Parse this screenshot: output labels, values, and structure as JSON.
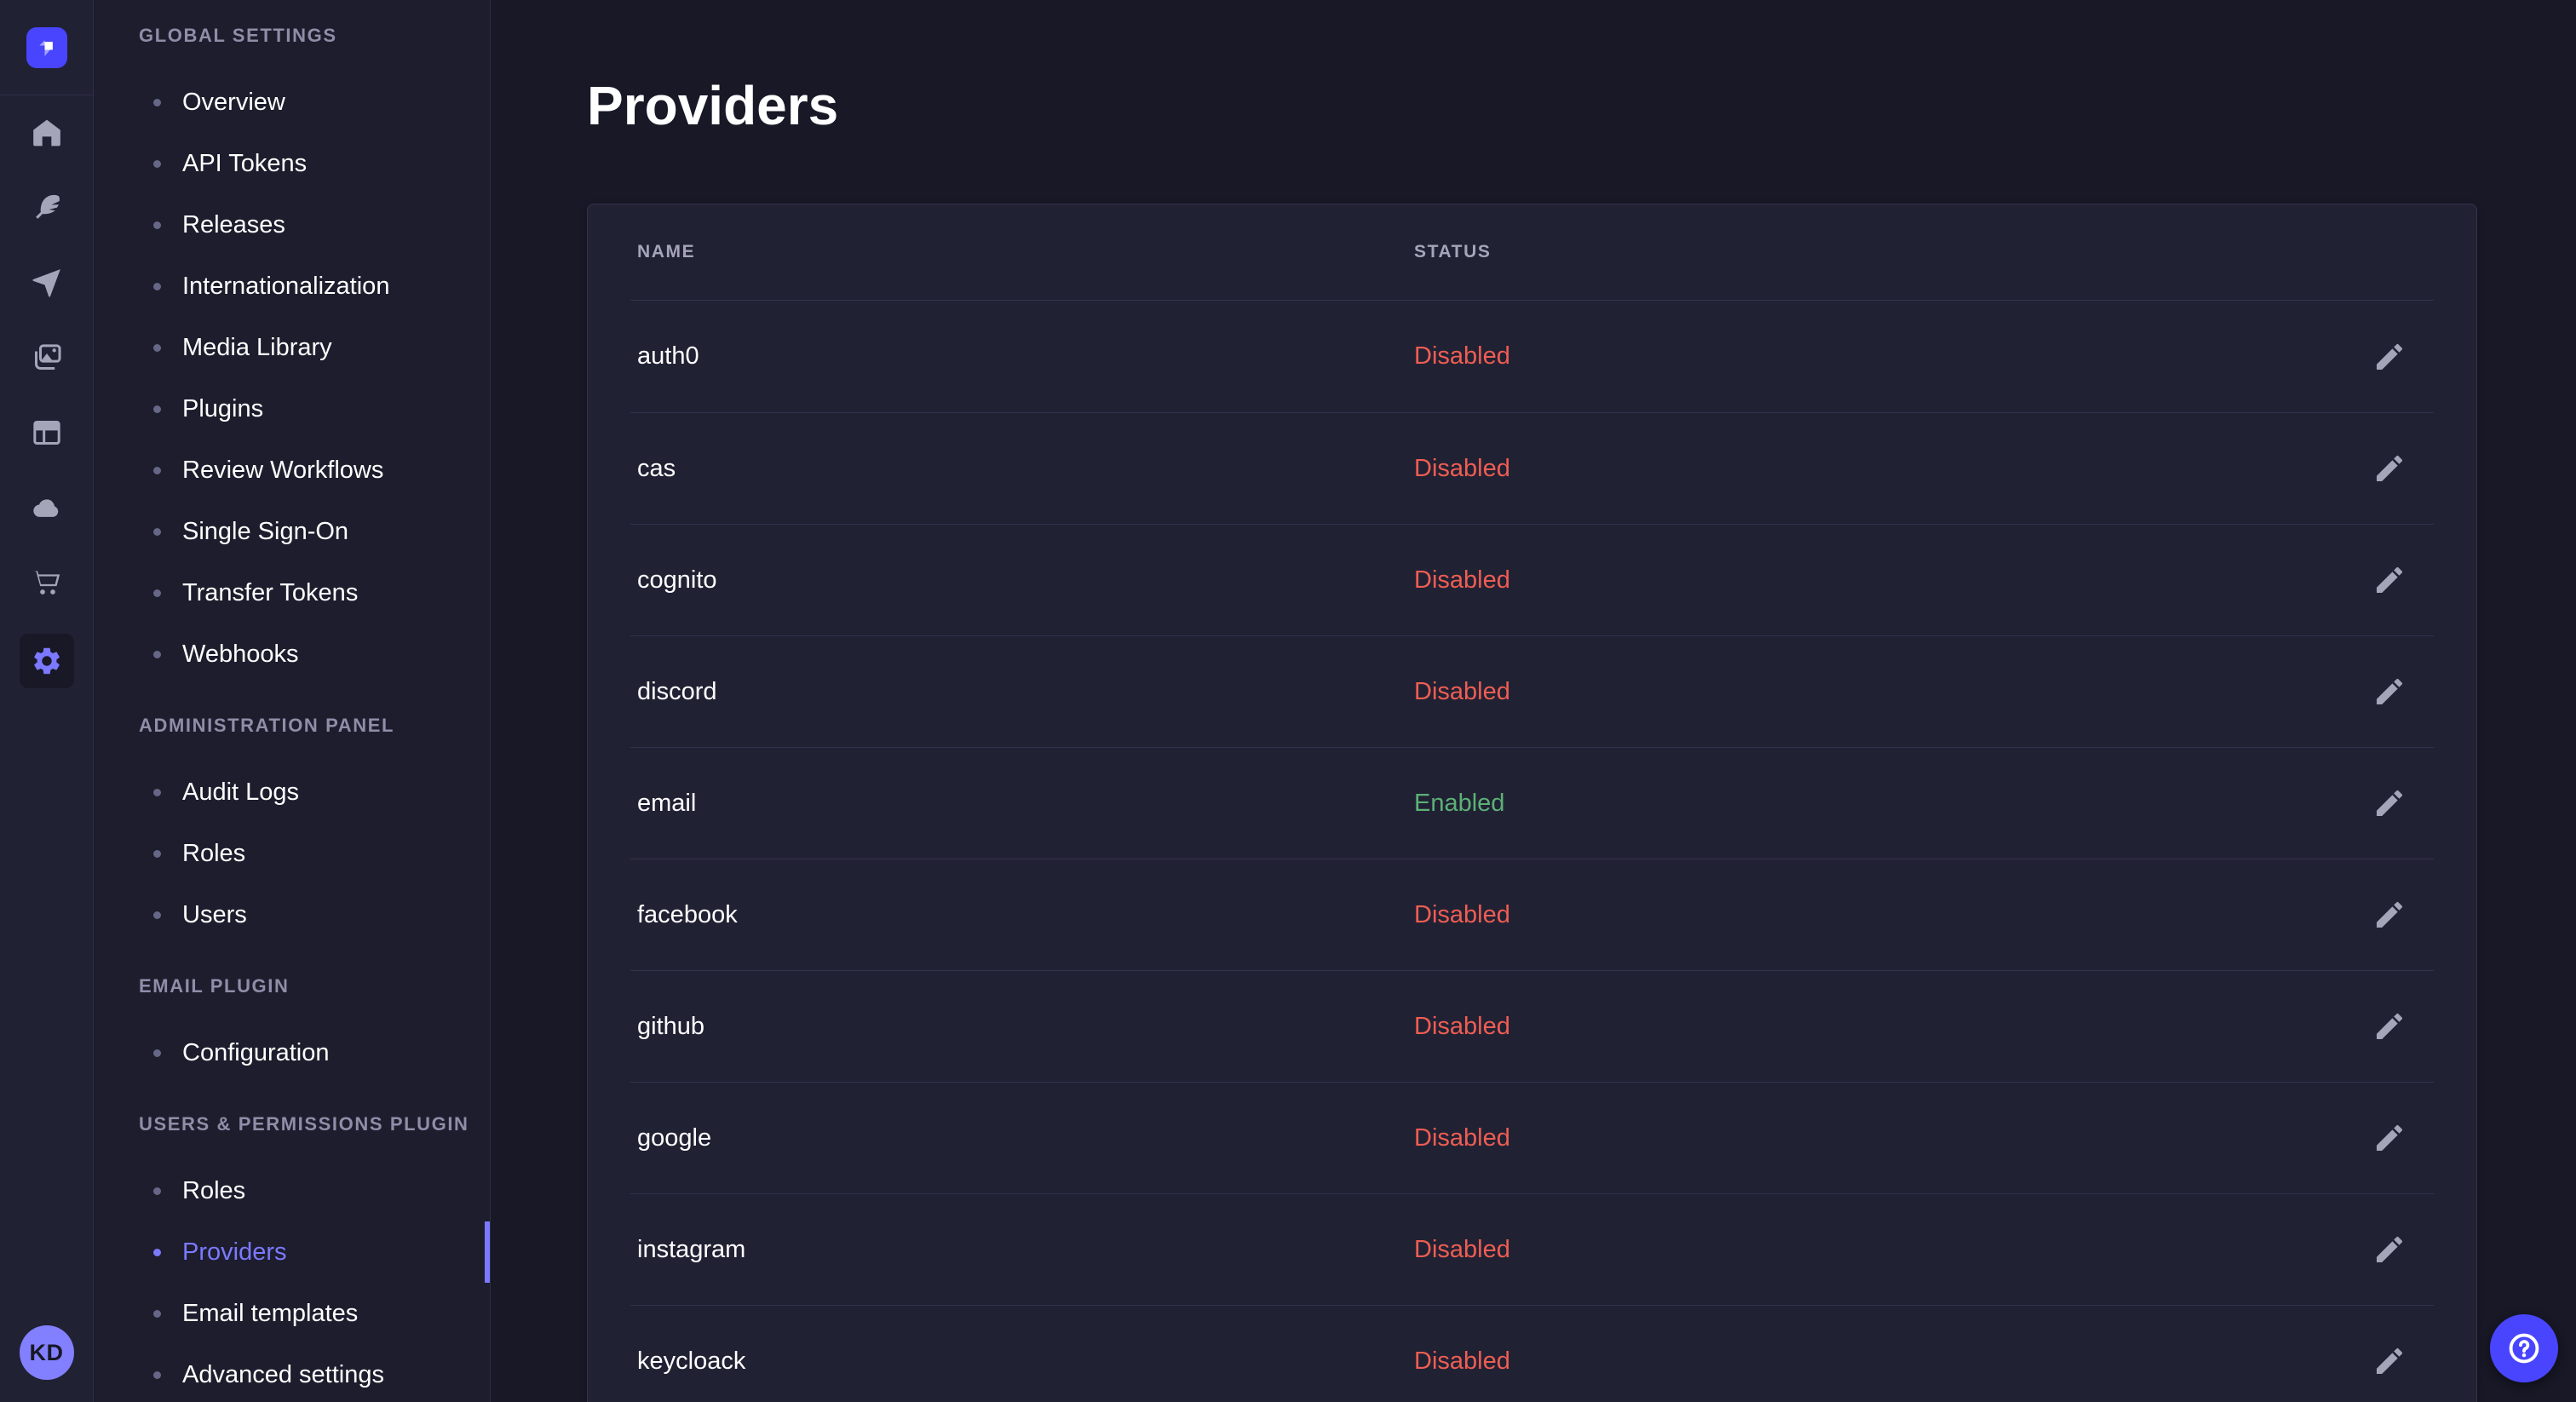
{
  "rail": {
    "logo": "strapi-logo",
    "icons": [
      {
        "name": "home"
      },
      {
        "name": "feather"
      },
      {
        "name": "send"
      },
      {
        "name": "images"
      },
      {
        "name": "layout"
      },
      {
        "name": "cloud"
      },
      {
        "name": "cart"
      },
      {
        "name": "gear",
        "active": true
      }
    ],
    "avatar_initials": "KD"
  },
  "subnav": {
    "sections": [
      {
        "label": "GLOBAL SETTINGS",
        "items": [
          {
            "label": "Overview"
          },
          {
            "label": "API Tokens"
          },
          {
            "label": "Releases"
          },
          {
            "label": "Internationalization"
          },
          {
            "label": "Media Library"
          },
          {
            "label": "Plugins"
          },
          {
            "label": "Review Workflows"
          },
          {
            "label": "Single Sign-On"
          },
          {
            "label": "Transfer Tokens"
          },
          {
            "label": "Webhooks"
          }
        ]
      },
      {
        "label": "ADMINISTRATION PANEL",
        "items": [
          {
            "label": "Audit Logs"
          },
          {
            "label": "Roles"
          },
          {
            "label": "Users"
          }
        ]
      },
      {
        "label": "EMAIL PLUGIN",
        "items": [
          {
            "label": "Configuration"
          }
        ]
      },
      {
        "label": "USERS & PERMISSIONS PLUGIN",
        "items": [
          {
            "label": "Roles"
          },
          {
            "label": "Providers",
            "active": true
          },
          {
            "label": "Email templates"
          },
          {
            "label": "Advanced settings"
          }
        ]
      }
    ]
  },
  "main": {
    "title": "Providers",
    "table": {
      "columns": {
        "name": "NAME",
        "status": "STATUS"
      },
      "rows": [
        {
          "name": "auth0",
          "status": "Disabled"
        },
        {
          "name": "cas",
          "status": "Disabled"
        },
        {
          "name": "cognito",
          "status": "Disabled"
        },
        {
          "name": "discord",
          "status": "Disabled"
        },
        {
          "name": "email",
          "status": "Enabled"
        },
        {
          "name": "facebook",
          "status": "Disabled"
        },
        {
          "name": "github",
          "status": "Disabled"
        },
        {
          "name": "google",
          "status": "Disabled"
        },
        {
          "name": "instagram",
          "status": "Disabled"
        },
        {
          "name": "keycloack",
          "status": "Disabled"
        }
      ]
    }
  },
  "colors": {
    "accent": "#4945ff",
    "active_link": "#7b79ff",
    "status_enabled": "#5cb176",
    "status_disabled": "#ee5e52",
    "page_bg": "#181826",
    "card_bg": "#212134"
  }
}
